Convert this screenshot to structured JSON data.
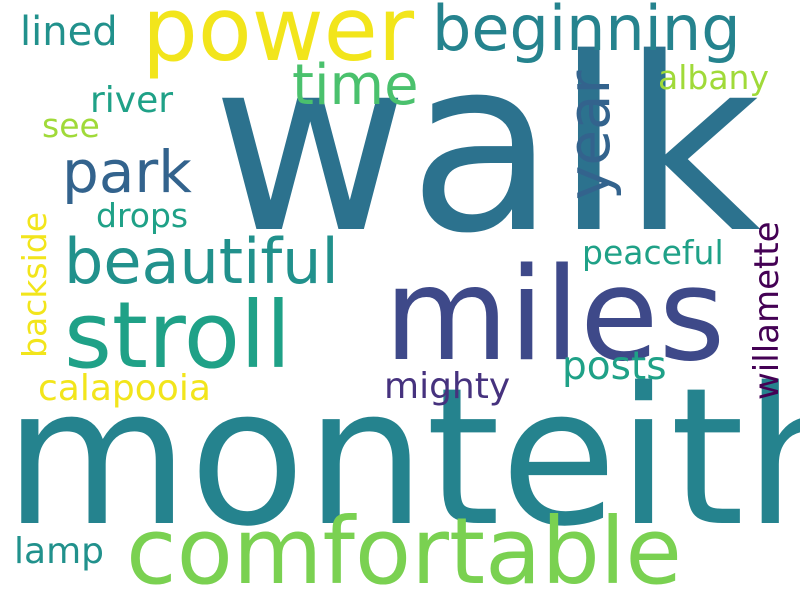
{
  "wordcloud": {
    "words": {
      "walk": "walk",
      "monteith": "monteith",
      "miles": "miles",
      "power": "power",
      "comfortable": "comfortable",
      "stroll": "stroll",
      "beginning": "beginning",
      "beautiful": "beautiful",
      "park": "park",
      "time": "time",
      "year": "year",
      "lined": "lined",
      "river": "river",
      "see": "see",
      "drops": "drops",
      "albany": "albany",
      "peaceful": "peaceful",
      "mighty": "mighty",
      "posts": "posts",
      "calapooia": "calapooia",
      "lamp": "lamp",
      "backside": "backside",
      "willamette": "willamette"
    },
    "colors": {
      "background": "#ffffff",
      "yellow": "#f2e51b",
      "lime": "#a0da39",
      "green": "#7ad151",
      "medium_green": "#4ac16d",
      "teal": "#1fa187",
      "teal_2": "#21918c",
      "cyan": "#25838e",
      "blue": "#2c728e",
      "steel_blue": "#33638d",
      "indigo": "#3e4989",
      "purple": "#46327e",
      "dark_purple": "#440154"
    }
  }
}
